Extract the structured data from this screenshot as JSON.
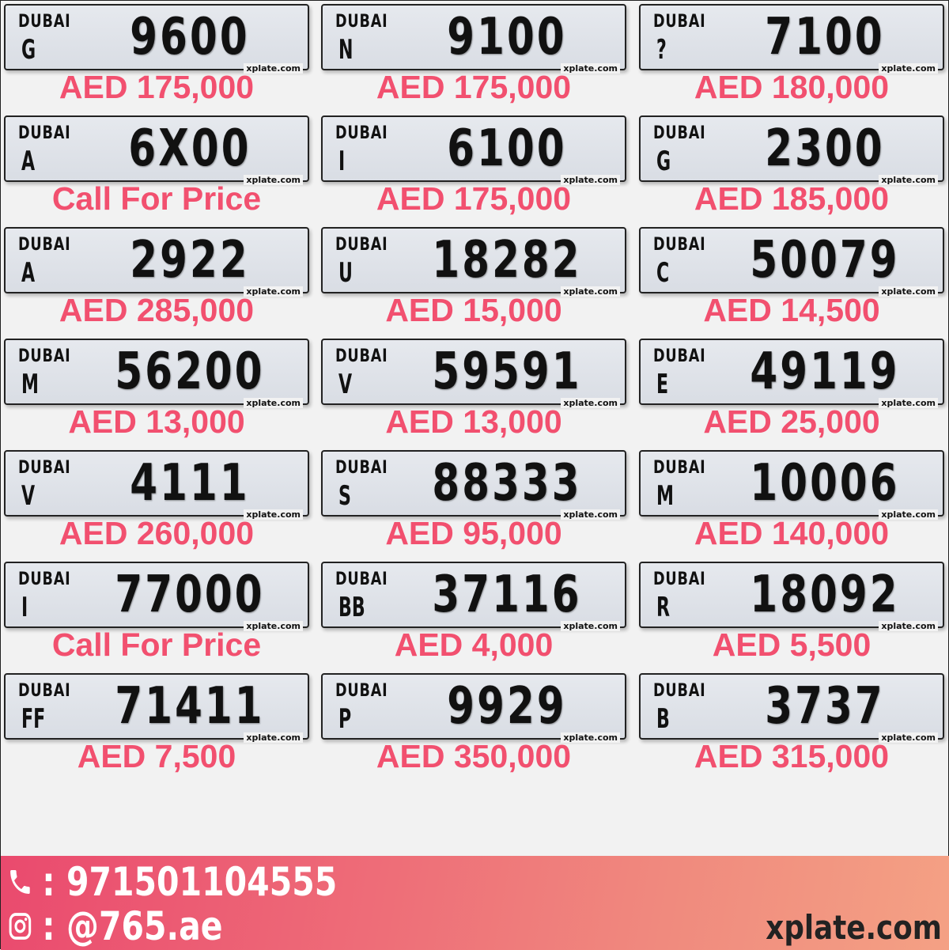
{
  "plates": [
    {
      "emirate": "DUBAI",
      "code": "G",
      "number": "9600",
      "price": "AED 175,000"
    },
    {
      "emirate": "DUBAI",
      "code": "N",
      "number": "9100",
      "price": "AED 175,000"
    },
    {
      "emirate": "DUBAI",
      "code": "?",
      "number": "7100",
      "price": "AED 180,000"
    },
    {
      "emirate": "DUBAI",
      "code": "A",
      "number": "6X00",
      "price": "Call For Price"
    },
    {
      "emirate": "DUBAI",
      "code": "I",
      "number": "6100",
      "price": "AED 175,000"
    },
    {
      "emirate": "DUBAI",
      "code": "G",
      "number": "2300",
      "price": "AED 185,000"
    },
    {
      "emirate": "DUBAI",
      "code": "A",
      "number": "2922",
      "price": "AED 285,000"
    },
    {
      "emirate": "DUBAI",
      "code": "U",
      "number": "18282",
      "price": "AED 15,000"
    },
    {
      "emirate": "DUBAI",
      "code": "C",
      "number": "50079",
      "price": "AED 14,500"
    },
    {
      "emirate": "DUBAI",
      "code": "M",
      "number": "56200",
      "price": "AED 13,000"
    },
    {
      "emirate": "DUBAI",
      "code": "V",
      "number": "59591",
      "price": "AED 13,000"
    },
    {
      "emirate": "DUBAI",
      "code": "E",
      "number": "49119",
      "price": "AED 25,000"
    },
    {
      "emirate": "DUBAI",
      "code": "V",
      "number": "4111",
      "price": "AED 260,000"
    },
    {
      "emirate": "DUBAI",
      "code": "S",
      "number": "88333",
      "price": "AED 95,000"
    },
    {
      "emirate": "DUBAI",
      "code": "M",
      "number": "10006",
      "price": "AED 140,000"
    },
    {
      "emirate": "DUBAI",
      "code": "I",
      "number": "77000",
      "price": "Call For Price"
    },
    {
      "emirate": "DUBAI",
      "code": "BB",
      "number": "37116",
      "price": "AED 4,000"
    },
    {
      "emirate": "DUBAI",
      "code": "R",
      "number": "18092",
      "price": "AED 5,500"
    },
    {
      "emirate": "DUBAI",
      "code": "FF",
      "number": "71411",
      "price": "AED 7,500"
    },
    {
      "emirate": "DUBAI",
      "code": "P",
      "number": "9929",
      "price": "AED 350,000"
    },
    {
      "emirate": "DUBAI",
      "code": "B",
      "number": "3737",
      "price": "AED 315,000"
    }
  ],
  "plate_brand": "xplate.com",
  "footer": {
    "phone": ": 971501104555",
    "instagram": ": @765.ae",
    "site": "xplate.com"
  },
  "colors": {
    "price": "#f2506f",
    "footer_start": "#ea4a6e",
    "footer_end": "#f4a184"
  }
}
